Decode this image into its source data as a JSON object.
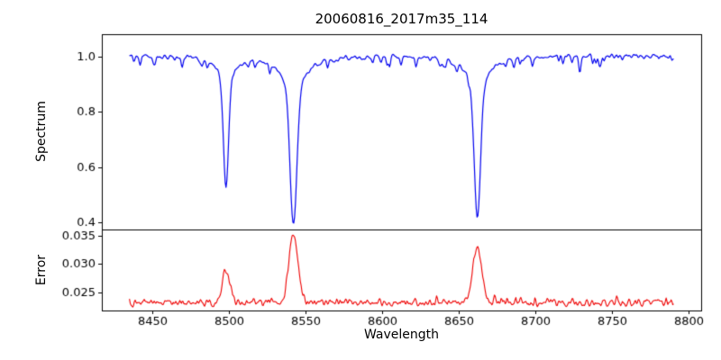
{
  "chart_data": {
    "type": "line",
    "title": "20060816_2017m35_114",
    "xlabel": "Wavelength",
    "background_color": "#ffffff",
    "axis_color": "#000000",
    "x_range": [
      8417,
      8808
    ],
    "x_data_range": [
      8435,
      8790
    ],
    "x_ticks": [
      8450,
      8500,
      8550,
      8600,
      8650,
      8700,
      8750,
      8800
    ],
    "x_tick_labels": [
      "8450",
      "8500",
      "8550",
      "8600",
      "8650",
      "8700",
      "8750",
      "8800"
    ],
    "sample_count": 660,
    "seed": 42,
    "panels": [
      {
        "ylabel": "Spectrum",
        "color": "#0000ee",
        "ylim": [
          0.375,
          1.08
        ],
        "y_ticks": [
          0.4,
          0.6,
          0.8,
          1.0
        ],
        "y_tick_labels": [
          "0.4",
          "0.6",
          "0.8",
          "1.0"
        ],
        "continuum": 1.0,
        "noise_amplitude": 0.013,
        "dip_probability": 0.1,
        "dip_depth": 0.09,
        "absorption_lines": [
          {
            "center": 8498,
            "depth": 0.47,
            "core_width": 1.6,
            "wing_width": 6
          },
          {
            "center": 8542,
            "depth": 0.6,
            "core_width": 2.2,
            "wing_width": 9
          },
          {
            "center": 8662,
            "depth": 0.583,
            "core_width": 2.0,
            "wing_width": 8
          }
        ]
      },
      {
        "ylabel": "Error",
        "color": "#ee0000",
        "ylim": [
          0.0218,
          0.0361
        ],
        "y_ticks": [
          0.025,
          0.03,
          0.035
        ],
        "y_tick_labels": [
          "0.025",
          "0.030",
          "0.035"
        ],
        "baseline": 0.0232,
        "noise_amplitude": 0.0009,
        "spike_probability": 0.05,
        "spike_height": 0.0018,
        "peaks": [
          {
            "center": 8498,
            "height": 0.0058,
            "width": 2.5
          },
          {
            "center": 8542,
            "height": 0.0123,
            "width": 3.0
          },
          {
            "center": 8662,
            "height": 0.0098,
            "width": 3.0
          }
        ]
      }
    ]
  }
}
